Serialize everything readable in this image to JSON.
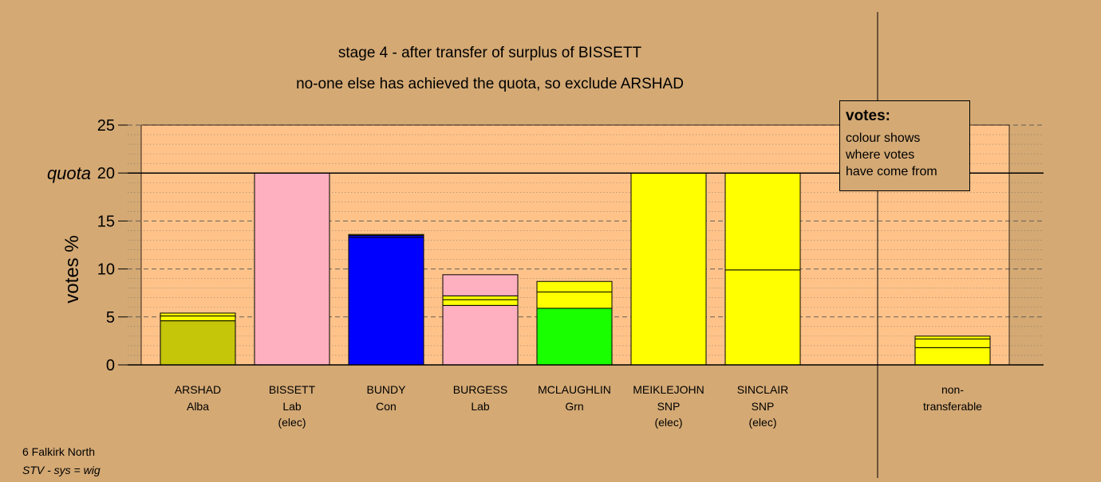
{
  "chart_data": {
    "type": "bar",
    "title": "stage 4 - after transfer of surplus of BISSETT",
    "subtitle": "no-one else has achieved the quota, so exclude ARSHAD",
    "ylabel": "votes %",
    "quota_label": "quota",
    "quota": 20,
    "ylim": [
      0,
      25
    ],
    "yticks": [
      0,
      5,
      10,
      15,
      20,
      25
    ],
    "grid": true,
    "stacked": true,
    "colors": {
      "Alba": "#c5c50a",
      "Lab": "#ffb0c0",
      "Con": "#0000ff",
      "Grn": "#1aff00",
      "SNP": "#ffff00",
      "plot_bg": "#ffc38a",
      "page_bg": "#d4a974"
    },
    "categories": [
      {
        "name": "ARSHAD",
        "party": "Alba",
        "status": "",
        "segments": [
          {
            "from": "Alba",
            "value": 4.6
          },
          {
            "from": "SNP",
            "value": 0.5
          },
          {
            "from": "SNP",
            "value": 0.3
          }
        ]
      },
      {
        "name": "BISSETT",
        "party": "Lab",
        "status": "(elec)",
        "segments": [
          {
            "from": "Lab",
            "value": 20.0
          }
        ]
      },
      {
        "name": "BUNDY",
        "party": "Con",
        "status": "",
        "segments": [
          {
            "from": "Con",
            "value": 13.3
          },
          {
            "from": "Con",
            "value": 0.2
          },
          {
            "from": "SNP",
            "value": 0.1
          }
        ]
      },
      {
        "name": "BURGESS",
        "party": "Lab",
        "status": "",
        "segments": [
          {
            "from": "Lab",
            "value": 6.2
          },
          {
            "from": "SNP",
            "value": 0.6
          },
          {
            "from": "SNP",
            "value": 0.4
          },
          {
            "from": "Lab",
            "value": 2.2
          }
        ]
      },
      {
        "name": "MCLAUGHLIN",
        "party": "Grn",
        "status": "",
        "segments": [
          {
            "from": "Grn",
            "value": 5.9
          },
          {
            "from": "SNP",
            "value": 1.7
          },
          {
            "from": "SNP",
            "value": 1.1
          }
        ]
      },
      {
        "name": "MEIKLEJOHN",
        "party": "SNP",
        "status": "(elec)",
        "segments": [
          {
            "from": "SNP",
            "value": 20.0
          }
        ]
      },
      {
        "name": "SINCLAIR",
        "party": "SNP",
        "status": "(elec)",
        "segments": [
          {
            "from": "SNP",
            "value": 9.9
          },
          {
            "from": "SNP",
            "value": 10.1
          }
        ]
      }
    ],
    "nontransferable": {
      "label_line1": "non-",
      "label_line2": "transferable",
      "segments": [
        {
          "from": "SNP",
          "value": 1.8
        },
        {
          "from": "SNP",
          "value": 0.9
        },
        {
          "from": "SNP",
          "value": 0.3
        }
      ]
    }
  },
  "legend": {
    "title": "votes:",
    "lines": [
      "colour shows",
      "where votes",
      "have come from"
    ]
  },
  "footer": {
    "line1": "6 Falkirk North",
    "line2": "STV - sys = wig"
  }
}
